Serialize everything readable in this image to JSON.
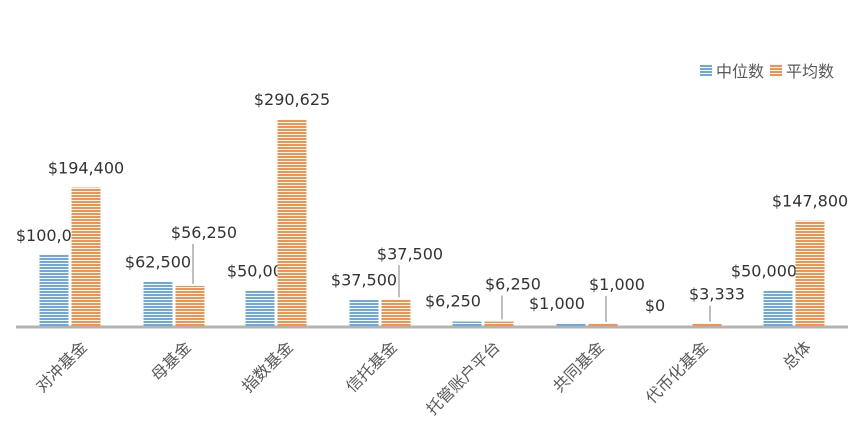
{
  "colors": {
    "median": "#6fa8dc",
    "mean": "#f4914d",
    "axis": "#b3b3b3",
    "label": "#333333",
    "leader": "#7f7f7f"
  },
  "legend": {
    "items": [
      {
        "label": "中位数",
        "color": "#6fa8dc"
      },
      {
        "label": "平均数",
        "color": "#f4914d"
      }
    ]
  },
  "chart_data": {
    "type": "bar",
    "title": "",
    "xlabel": "",
    "ylabel": "",
    "ylim": [
      0,
      300000
    ],
    "grid": false,
    "legend_position": "top-right",
    "categories": [
      "对冲基金",
      "母基金",
      "指数基金",
      "信托基金",
      "托管账户平台",
      "共同基金",
      "代币化基金",
      "总体"
    ],
    "series": [
      {
        "name": "中位数",
        "values": [
          100000,
          62500,
          50000,
          37500,
          6250,
          1000,
          0,
          50000
        ],
        "labels": [
          "$100,000",
          "$62,500",
          "$50,000",
          "$37,500",
          "$6,250",
          "$1,000",
          "$0",
          "$50,000"
        ]
      },
      {
        "name": "平均数",
        "values": [
          194400,
          56250,
          290625,
          37500,
          6250,
          1000,
          3333,
          147800
        ],
        "labels": [
          "$194,400",
          "$56,250",
          "$290,625",
          "$37,500",
          "$6,250",
          "$1,000",
          "$3,333",
          "$147,800"
        ]
      }
    ]
  }
}
